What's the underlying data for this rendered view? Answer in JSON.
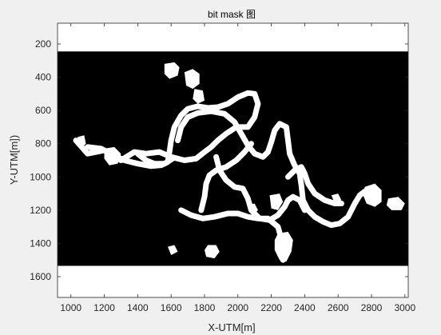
{
  "chart_data": {
    "type": "heatmap",
    "title": "bit mask 图",
    "xlabel": "X-UTM[m]",
    "ylabel": "Y-UTM[m])",
    "xlim": [
      920,
      3020
    ],
    "ylim": [
      1725,
      75
    ],
    "y_direction": "reversed",
    "xticks": [
      1000,
      1200,
      1400,
      1600,
      1800,
      2000,
      2200,
      2400,
      2600,
      2800,
      3000
    ],
    "yticks": [
      200,
      400,
      600,
      800,
      1000,
      1200,
      1400,
      1600
    ],
    "mask_extent": {
      "y_top": 245,
      "y_bottom": 1535
    },
    "colors": {
      "mask_on": "#ffffff",
      "mask_off": "#000000",
      "background": "#ffffff"
    },
    "channels": [
      [
        [
          1030,
          780
        ],
        [
          1100,
          860
        ],
        [
          1200,
          840
        ],
        [
          1300,
          900
        ],
        [
          1380,
          850
        ],
        [
          1450,
          860
        ],
        [
          1530,
          850
        ],
        [
          1600,
          880
        ],
        [
          1680,
          900
        ],
        [
          1750,
          890
        ],
        [
          1800,
          850
        ],
        [
          1840,
          820
        ],
        [
          1880,
          780
        ],
        [
          1930,
          740
        ],
        [
          1990,
          700
        ],
        [
          2060,
          700
        ],
        [
          2100,
          640
        ],
        [
          2120,
          560
        ],
        [
          2100,
          500
        ],
        [
          2060,
          495
        ],
        [
          2000,
          520
        ],
        [
          1940,
          560
        ],
        [
          1880,
          580
        ],
        [
          1820,
          585
        ],
        [
          1760,
          575
        ],
        [
          1700,
          590
        ],
        [
          1660,
          630
        ],
        [
          1620,
          700
        ],
        [
          1600,
          780
        ],
        [
          1590,
          850
        ],
        [
          1580,
          910
        ],
        [
          1540,
          930
        ],
        [
          1480,
          935
        ],
        [
          1400,
          920
        ],
        [
          1320,
          900
        ],
        [
          1260,
          870
        ],
        [
          1180,
          830
        ],
        [
          1100,
          820
        ]
      ],
      [
        [
          1640,
          780
        ],
        [
          1660,
          700
        ],
        [
          1700,
          640
        ],
        [
          1760,
          615
        ],
        [
          1840,
          605
        ],
        [
          1920,
          620
        ],
        [
          1980,
          670
        ],
        [
          2020,
          740
        ],
        [
          2060,
          810
        ],
        [
          2100,
          860
        ],
        [
          2150,
          880
        ],
        [
          2180,
          850
        ],
        [
          2200,
          790
        ],
        [
          2220,
          720
        ],
        [
          2250,
          680
        ],
        [
          2290,
          700
        ],
        [
          2300,
          780
        ],
        [
          2310,
          860
        ],
        [
          2340,
          930
        ],
        [
          2370,
          980
        ],
        [
          2380,
          1050
        ],
        [
          2390,
          1140
        ],
        [
          2420,
          1200
        ],
        [
          2460,
          1240
        ],
        [
          2510,
          1270
        ],
        [
          2560,
          1290
        ],
        [
          2610,
          1280
        ],
        [
          2660,
          1240
        ],
        [
          2700,
          1160
        ],
        [
          2730,
          1110
        ],
        [
          2770,
          1080
        ]
      ],
      [
        [
          1870,
          880
        ],
        [
          1890,
          960
        ],
        [
          1930,
          1020
        ],
        [
          1980,
          1060
        ],
        [
          2030,
          1070
        ],
        [
          2060,
          1130
        ],
        [
          2080,
          1200
        ],
        [
          2130,
          1250
        ],
        [
          2190,
          1260
        ],
        [
          2240,
          1230
        ],
        [
          2280,
          1180
        ],
        [
          2300,
          1140
        ],
        [
          2330,
          1120
        ],
        [
          2370,
          1140
        ],
        [
          2400,
          1200
        ]
      ],
      [
        [
          1660,
          1200
        ],
        [
          1720,
          1230
        ],
        [
          1790,
          1250
        ],
        [
          1860,
          1240
        ],
        [
          1940,
          1220
        ],
        [
          2000,
          1220
        ],
        [
          2060,
          1240
        ],
        [
          2120,
          1250
        ],
        [
          2180,
          1250
        ],
        [
          2240,
          1300
        ],
        [
          2260,
          1370
        ],
        [
          2270,
          1440
        ],
        [
          2270,
          1500
        ]
      ],
      [
        [
          1780,
          1200
        ],
        [
          1800,
          1120
        ],
        [
          1810,
          1040
        ],
        [
          1830,
          990
        ],
        [
          1870,
          960
        ],
        [
          1930,
          940
        ],
        [
          1990,
          900
        ],
        [
          2040,
          850
        ],
        [
          2080,
          800
        ]
      ],
      [
        [
          2300,
          1000
        ],
        [
          2340,
          960
        ],
        [
          2380,
          940
        ],
        [
          2400,
          980
        ],
        [
          2420,
          1040
        ],
        [
          2460,
          1100
        ],
        [
          2520,
          1140
        ],
        [
          2580,
          1160
        ],
        [
          2620,
          1160
        ]
      ],
      [
        [
          1400,
          860
        ],
        [
          1450,
          900
        ],
        [
          1500,
          920
        ],
        [
          1560,
          920
        ],
        [
          1610,
          890
        ]
      ]
    ],
    "blobs": [
      [
        [
          1560,
          320
        ],
        [
          1620,
          310
        ],
        [
          1650,
          340
        ],
        [
          1640,
          390
        ],
        [
          1590,
          410
        ],
        [
          1560,
          380
        ]
      ],
      [
        [
          1680,
          370
        ],
        [
          1730,
          350
        ],
        [
          1770,
          380
        ],
        [
          1770,
          440
        ],
        [
          1730,
          470
        ],
        [
          1690,
          450
        ]
      ],
      [
        [
          1740,
          470
        ],
        [
          1790,
          480
        ],
        [
          1800,
          540
        ],
        [
          1760,
          560
        ],
        [
          1730,
          530
        ]
      ],
      [
        [
          1040,
          760
        ],
        [
          1080,
          750
        ],
        [
          1090,
          800
        ],
        [
          1070,
          820
        ],
        [
          1040,
          810
        ]
      ],
      [
        [
          1200,
          830
        ],
        [
          1260,
          820
        ],
        [
          1300,
          860
        ],
        [
          1280,
          920
        ],
        [
          1230,
          930
        ],
        [
          1200,
          890
        ]
      ],
      [
        [
          2240,
          1340
        ],
        [
          2300,
          1330
        ],
        [
          2330,
          1380
        ],
        [
          2320,
          1450
        ],
        [
          2290,
          1510
        ],
        [
          2250,
          1500
        ],
        [
          2220,
          1440
        ],
        [
          2220,
          1380
        ]
      ],
      [
        [
          2190,
          1110
        ],
        [
          2250,
          1100
        ],
        [
          2270,
          1150
        ],
        [
          2240,
          1200
        ],
        [
          2200,
          1190
        ]
      ],
      [
        [
          2060,
          1170
        ],
        [
          2100,
          1160
        ],
        [
          2120,
          1200
        ],
        [
          2090,
          1230
        ]
      ],
      [
        [
          2560,
          1110
        ],
        [
          2600,
          1100
        ],
        [
          2620,
          1140
        ],
        [
          2580,
          1160
        ]
      ],
      [
        [
          2760,
          1060
        ],
        [
          2820,
          1040
        ],
        [
          2860,
          1080
        ],
        [
          2860,
          1150
        ],
        [
          2820,
          1180
        ],
        [
          2770,
          1160
        ],
        [
          2750,
          1110
        ]
      ],
      [
        [
          2900,
          1130
        ],
        [
          2960,
          1120
        ],
        [
          3000,
          1160
        ],
        [
          2980,
          1200
        ],
        [
          2920,
          1200
        ],
        [
          2890,
          1170
        ]
      ],
      [
        [
          1820,
          1410
        ],
        [
          1870,
          1410
        ],
        [
          1890,
          1450
        ],
        [
          1860,
          1490
        ],
        [
          1810,
          1480
        ],
        [
          1800,
          1440
        ]
      ],
      [
        [
          1580,
          1420
        ],
        [
          1620,
          1410
        ],
        [
          1640,
          1450
        ],
        [
          1600,
          1470
        ]
      ]
    ]
  }
}
